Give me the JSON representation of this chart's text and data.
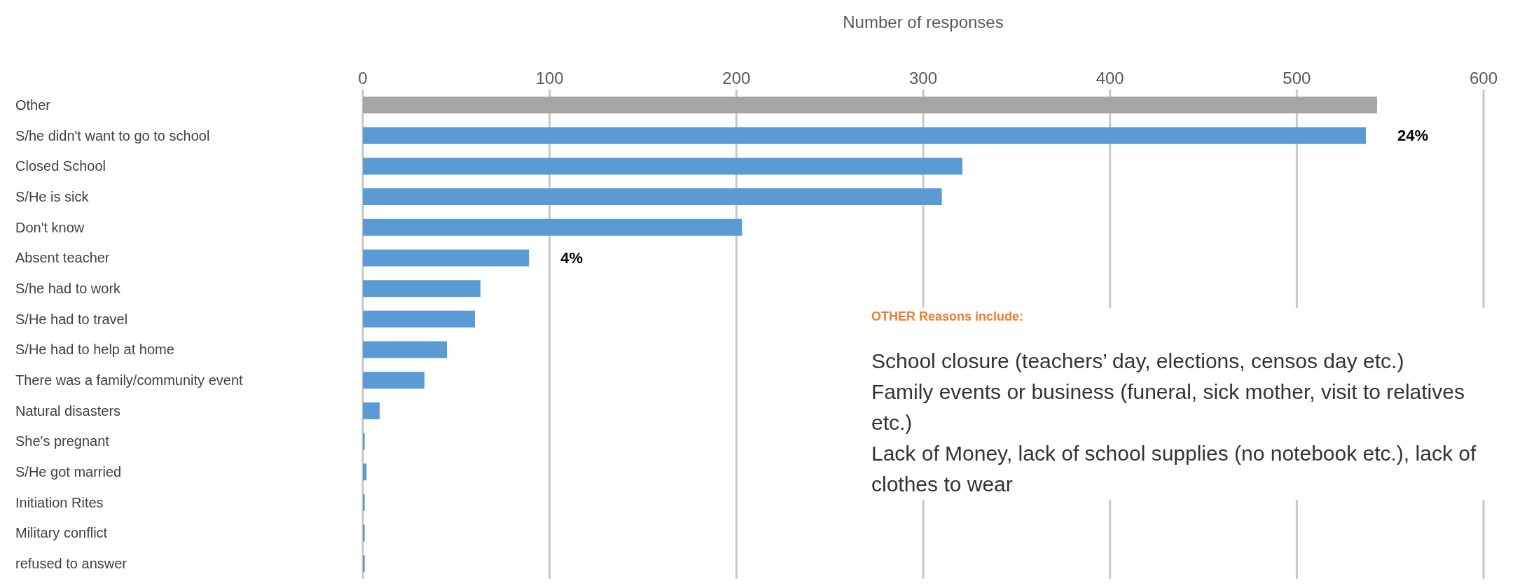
{
  "chart_data": {
    "type": "bar",
    "orientation": "horizontal",
    "xlabel": "Number of responses",
    "categories": [
      "Other",
      "S/he didn't want to go to school",
      "Closed School",
      "S/He is sick",
      "Don't know",
      "Absent teacher",
      "S/he had to work",
      "S/He had to travel",
      "S/He had to help at home",
      "There was a family/community event",
      "Natural disasters",
      "She's pregnant",
      "S/He got married",
      "Initiation Rites",
      "Military conflict",
      "refused to answer"
    ],
    "values": [
      543,
      537,
      321,
      310,
      203,
      89,
      63,
      60,
      45,
      33,
      9,
      1,
      2,
      1,
      1,
      1
    ],
    "colors": [
      "#a5a5a5",
      "#5b9bd5",
      "#5b9bd5",
      "#5b9bd5",
      "#5b9bd5",
      "#5b9bd5",
      "#5b9bd5",
      "#5b9bd5",
      "#5b9bd5",
      "#5b9bd5",
      "#5b9bd5",
      "#5b9bd5",
      "#5b9bd5",
      "#5b9bd5",
      "#5b9bd5",
      "#5b9bd5"
    ],
    "xlim": [
      0,
      600
    ],
    "xticks": [
      0,
      100,
      200,
      300,
      400,
      500,
      600
    ],
    "grid": "x",
    "legend": false,
    "annotations": [
      {
        "text": "24%",
        "x": 537,
        "y": "S/he didn't want to go to school"
      },
      {
        "text": "4%",
        "x": 89,
        "y": "Absent teacher"
      },
      "OTHER Reasons include:",
      "School closure (teachers’ day, elections, censos day etc.)",
      "Family events or business (funeral, sick mother, visit to relatives etc.)",
      "Lack of Money, lack of school supplies (no notebook etc.), lack of clothes to wear"
    ]
  }
}
